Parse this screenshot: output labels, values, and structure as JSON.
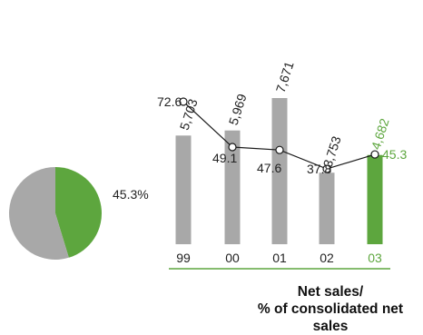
{
  "colors": {
    "gray": "#a8a8a8",
    "green": "#5da63e",
    "line": "#1a1a1a",
    "text": "#222222"
  },
  "caption": {
    "line1": "Net sales/",
    "line2": "% of consolidated net sales"
  },
  "chart_data": [
    {
      "type": "pie",
      "slices": [
        {
          "label": "45.3%",
          "value": 45.3,
          "color": "#5da63e"
        },
        {
          "label": "",
          "value": 54.7,
          "color": "#a8a8a8"
        }
      ],
      "legend": "none"
    },
    {
      "type": "bar",
      "categories": [
        "99",
        "00",
        "01",
        "02",
        "03"
      ],
      "series": [
        {
          "kind": "bar",
          "values": [
            5703,
            5969,
            7671,
            3753,
            4682
          ],
          "labels": [
            "5,703",
            "5,969",
            "7,671",
            "3,753",
            "4,682"
          ],
          "colors": [
            "#a8a8a8",
            "#a8a8a8",
            "#a8a8a8",
            "#a8a8a8",
            "#5da63e"
          ]
        },
        {
          "kind": "line",
          "values": [
            72.6,
            49.1,
            47.6,
            37.8,
            45.3
          ],
          "labels": [
            "72.6",
            "49.1",
            "47.6",
            "37.8",
            "45.3"
          ]
        }
      ],
      "highlight_category": "03",
      "grid": false,
      "legend": "none"
    }
  ]
}
